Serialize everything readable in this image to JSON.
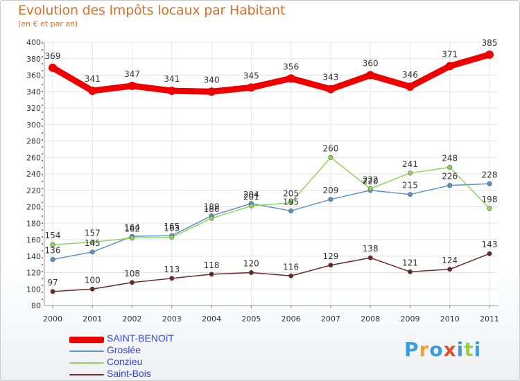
{
  "title": "Evolution des Impôts locaux par Habitant",
  "subtitle": "(en € et par an)",
  "logo": {
    "text": "Proxiti",
    "colors": [
      "#3a9de0",
      "#f2a12e",
      "#3a9de0",
      "#e0502a",
      "#3a9de0",
      "#9ccd4a",
      "#3a9de0"
    ]
  },
  "chart_data": {
    "type": "line",
    "x": [
      "2000",
      "2001",
      "2002",
      "2003",
      "2004",
      "2005",
      "2006",
      "2007",
      "2008",
      "2009",
      "2010",
      "2011"
    ],
    "ylim": [
      80,
      400
    ],
    "yticks": [
      80,
      100,
      120,
      140,
      160,
      180,
      200,
      220,
      240,
      260,
      280,
      300,
      320,
      340,
      360,
      380,
      400
    ],
    "grid": true,
    "legend_position": "bottom-left",
    "series": [
      {
        "name": "SAINT-BENOîT",
        "color": "#ee0000",
        "values": [
          369,
          341,
          347,
          341,
          340,
          345,
          356,
          343,
          360,
          346,
          371,
          385
        ]
      },
      {
        "name": "Groslée",
        "color": "#5b93c9",
        "values": [
          136,
          145,
          164,
          165,
          189,
          204,
          195,
          209,
          220,
          215,
          226,
          228
        ]
      },
      {
        "name": "Conzieu",
        "color": "#8fd45a",
        "values": [
          154,
          157,
          162,
          163,
          186,
          201,
          205,
          260,
          222,
          241,
          248,
          198
        ]
      },
      {
        "name": "Saint-Bois",
        "color": "#6b2626",
        "values": [
          97,
          100,
          108,
          113,
          118,
          120,
          116,
          129,
          138,
          121,
          124,
          143
        ]
      }
    ]
  }
}
